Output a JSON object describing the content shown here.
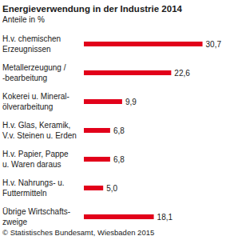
{
  "chart_data": {
    "type": "bar",
    "orientation": "horizontal",
    "title": "Energieverwendung in der Industrie 2014",
    "subtitle": "Anteile in %",
    "categories": [
      "H.v. chemischen\nErzeugnissen",
      "Metallerzeugung /\n-bearbeitung",
      "Kokerei u. Mineral-\nölverarbeitung",
      "H.v. Glas, Keramik,\nV.v. Steinen u. Erden",
      "H.v. Papier, Pappe\nu. Waren daraus",
      "H.v. Nahrungs- u.\nFuttermitteln",
      "Übrige Wirtschafts-\nzweige"
    ],
    "values": [
      30.7,
      22.6,
      9.9,
      6.8,
      6.8,
      5.0,
      18.1
    ],
    "value_labels": [
      "30,7",
      "22,6",
      "9,9",
      "6,8",
      "6,8",
      "5,0",
      "18,1"
    ],
    "data_labels": true,
    "tick_labels": false,
    "grid": false,
    "color": "#e2001a",
    "xlim": [
      0,
      31
    ],
    "source": "© Statistisches Bundesamt, Wiesbaden 2015"
  }
}
